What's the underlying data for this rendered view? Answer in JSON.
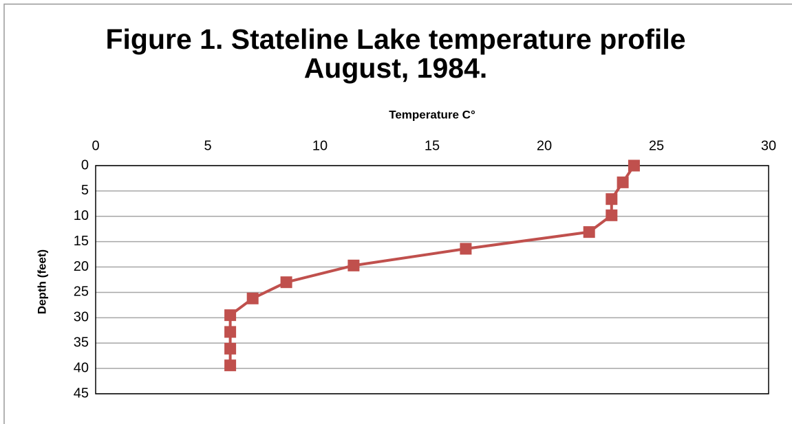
{
  "chart_data": {
    "type": "line",
    "title": [
      "Figure 1. Stateline Lake temperature profile",
      "August, 1984."
    ],
    "x_label": "Temperature C°",
    "y_label": "Depth (feet)",
    "x": [
      24,
      23.5,
      23,
      23,
      22,
      16.5,
      11.5,
      8.5,
      7,
      6,
      6,
      6,
      6
    ],
    "values": [
      0,
      3.3,
      6.6,
      9.8,
      13.1,
      16.4,
      19.7,
      23,
      26.2,
      29.5,
      32.8,
      36.1,
      39.4
    ],
    "color": "#c0504d",
    "marker": "square",
    "xlim": [
      0,
      30
    ],
    "xticks": [
      0,
      5,
      10,
      15,
      20,
      25,
      30
    ],
    "x_axis_position": "top",
    "ylim": [
      0,
      45
    ],
    "yticks": [
      0,
      5,
      10,
      15,
      20,
      25,
      30,
      35,
      40,
      45
    ],
    "y_inverted": true,
    "grid": true
  }
}
